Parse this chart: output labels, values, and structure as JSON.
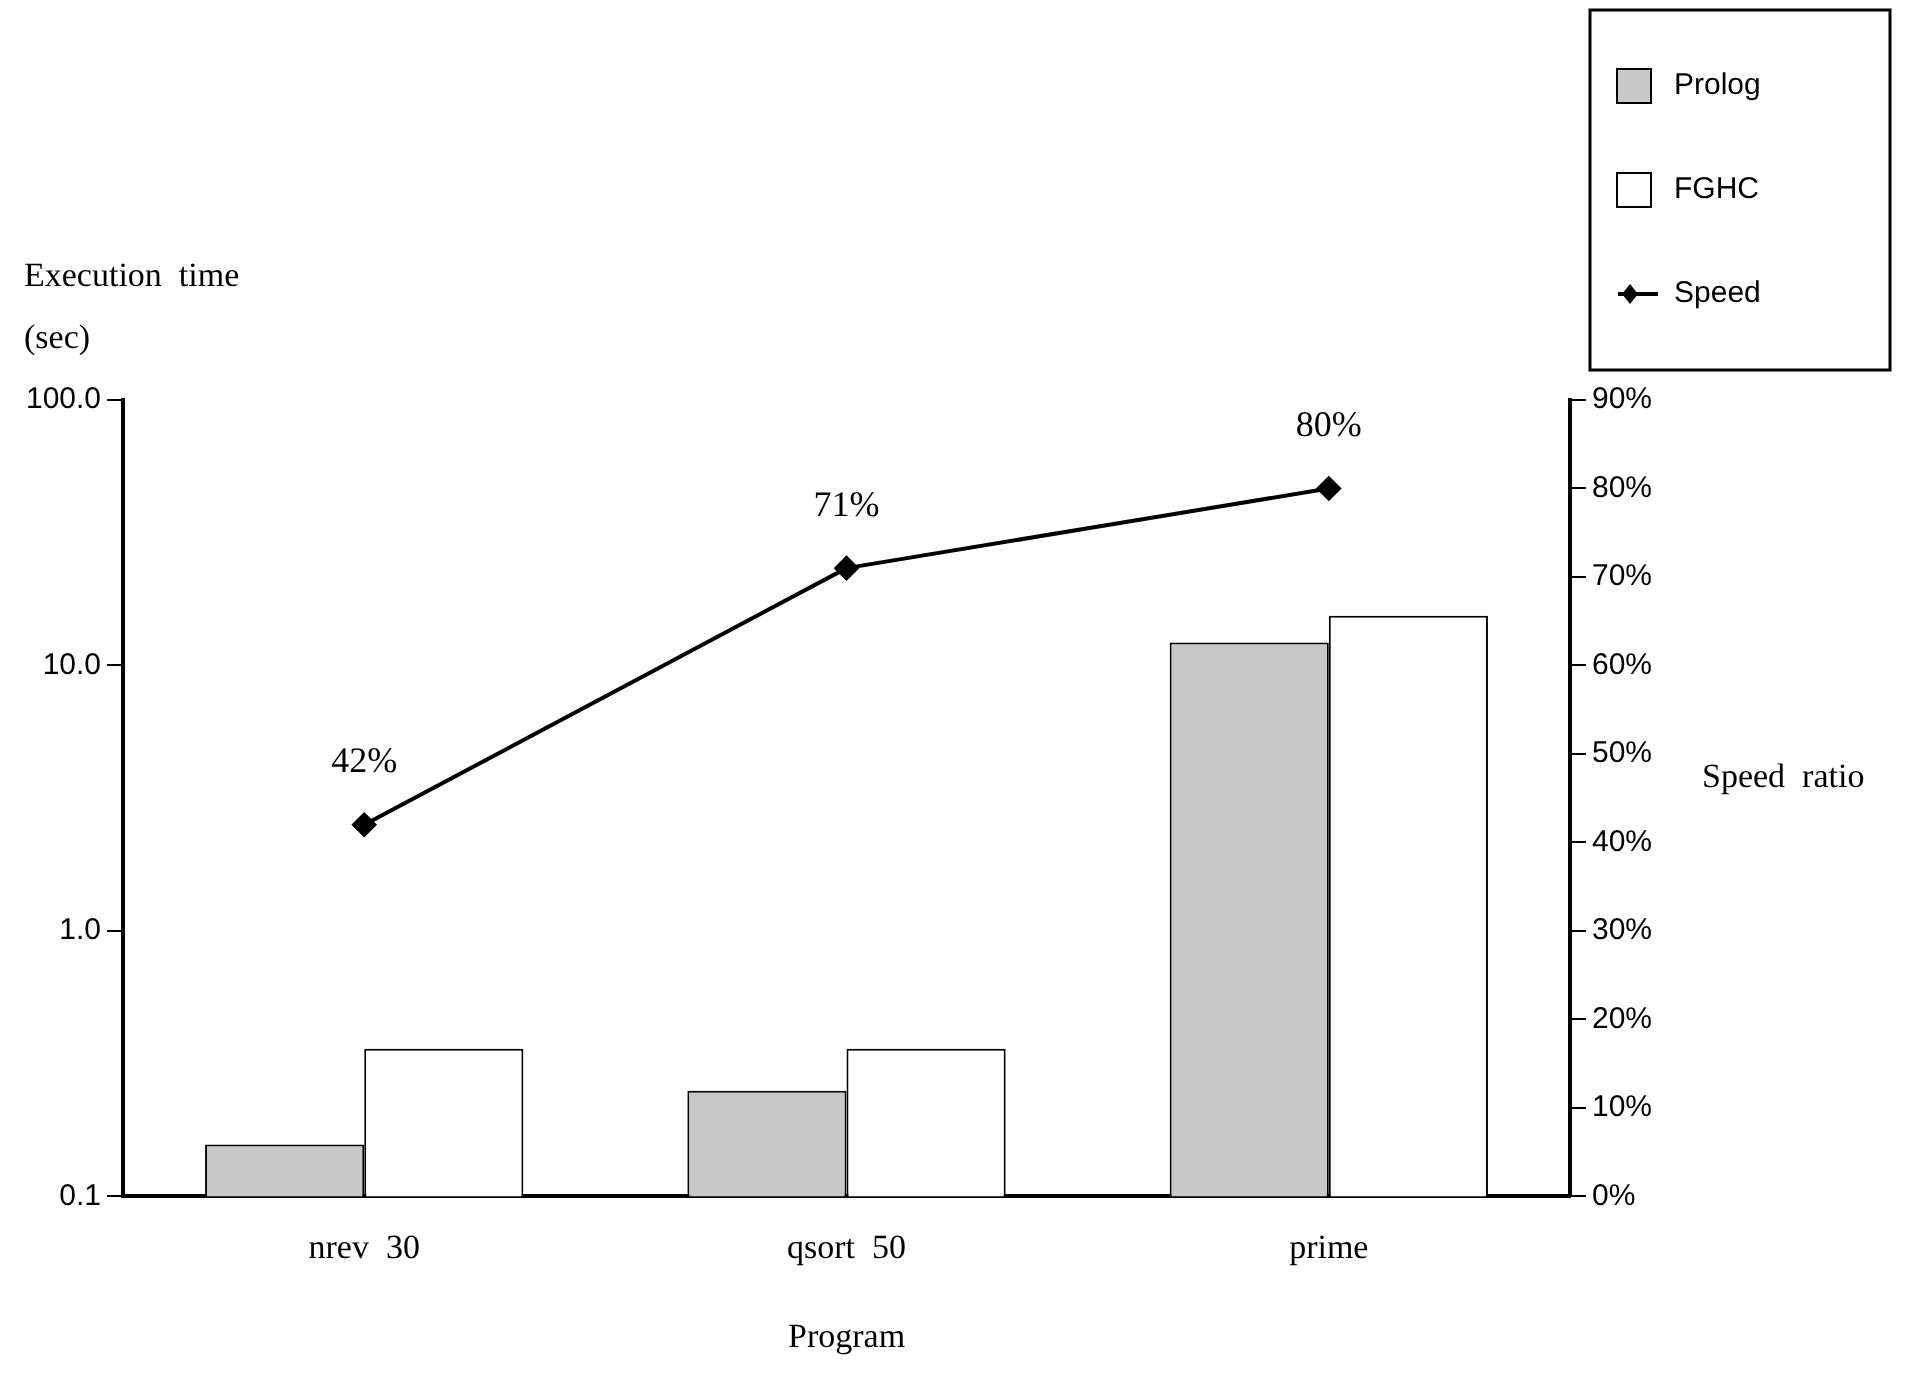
{
  "chart_data": {
    "type": "bar",
    "categories": [
      "nrev  30",
      "qsort  50",
      "prime"
    ],
    "xlabel": "Program",
    "ylabel": "Execution  time\n(sec)",
    "y2label": "Speed  ratio",
    "log": "y",
    "ylim": [
      0.1,
      100
    ],
    "yticks": [
      {
        "value": 0.1,
        "label": "0.1"
      },
      {
        "value": 1,
        "label": "1.0"
      },
      {
        "value": 10,
        "label": "10.0"
      },
      {
        "value": 100,
        "label": "100.0"
      }
    ],
    "y2lim": [
      0,
      90
    ],
    "y2ticks": [
      {
        "value": 0,
        "label": "0%"
      },
      {
        "value": 10,
        "label": "10%"
      },
      {
        "value": 20,
        "label": "20%"
      },
      {
        "value": 30,
        "label": "30%"
      },
      {
        "value": 40,
        "label": "40%"
      },
      {
        "value": 50,
        "label": "50%"
      },
      {
        "value": 60,
        "label": "60%"
      },
      {
        "value": 70,
        "label": "70%"
      },
      {
        "value": 80,
        "label": "80%"
      },
      {
        "value": 90,
        "label": "90%"
      }
    ],
    "series": [
      {
        "name": "Prolog",
        "color": "#c8c8c8",
        "values": [
          0.157,
          0.25,
          12.2
        ]
      },
      {
        "name": "FGHC",
        "color": "#ffffff",
        "values": [
          0.36,
          0.36,
          15.4
        ]
      },
      {
        "name": "Speed",
        "type": "line",
        "axis": "y2",
        "color": "#000000",
        "marker": "diamond",
        "values": [
          42,
          71,
          80
        ],
        "value_labels": [
          "42%",
          "71%",
          "80%"
        ]
      }
    ],
    "legend": "top right",
    "grid": false
  }
}
